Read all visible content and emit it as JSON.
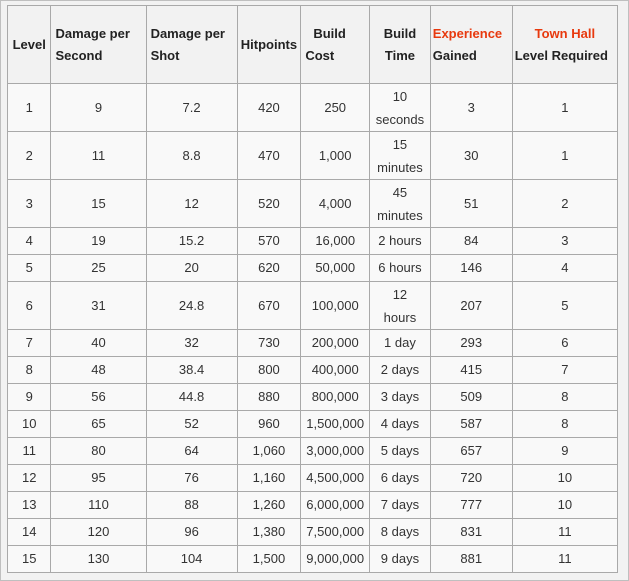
{
  "headers": {
    "level": "Level",
    "dps": [
      "Damage per",
      "Second"
    ],
    "dpshot": [
      "Damage per",
      "Shot"
    ],
    "hitpoints": "Hitpoints",
    "cost": [
      "Build",
      "Cost"
    ],
    "time": [
      "Build",
      "Time"
    ],
    "xp": [
      "Experience",
      "Gained"
    ],
    "townhall": [
      "Town Hall",
      "Level Required"
    ]
  },
  "rows": [
    {
      "level": "1",
      "dps": "9",
      "dpshot": "7.2",
      "hp": "420",
      "cost": "250",
      "time": [
        "10",
        "seconds"
      ],
      "xp": "3",
      "th": "1"
    },
    {
      "level": "2",
      "dps": "11",
      "dpshot": "8.8",
      "hp": "470",
      "cost": "1,000",
      "time": [
        "15",
        "minutes"
      ],
      "xp": "30",
      "th": "1"
    },
    {
      "level": "3",
      "dps": "15",
      "dpshot": "12",
      "hp": "520",
      "cost": "4,000",
      "time": [
        "45",
        "minutes"
      ],
      "xp": "51",
      "th": "2"
    },
    {
      "level": "4",
      "dps": "19",
      "dpshot": "15.2",
      "hp": "570",
      "cost": "16,000",
      "time": [
        "2 hours"
      ],
      "xp": "84",
      "th": "3"
    },
    {
      "level": "5",
      "dps": "25",
      "dpshot": "20",
      "hp": "620",
      "cost": "50,000",
      "time": [
        "6 hours"
      ],
      "xp": "146",
      "th": "4"
    },
    {
      "level": "6",
      "dps": "31",
      "dpshot": "24.8",
      "hp": "670",
      "cost": "100,000",
      "time": [
        "12",
        "hours"
      ],
      "xp": "207",
      "th": "5"
    },
    {
      "level": "7",
      "dps": "40",
      "dpshot": "32",
      "hp": "730",
      "cost": "200,000",
      "time": [
        "1 day"
      ],
      "xp": "293",
      "th": "6"
    },
    {
      "level": "8",
      "dps": "48",
      "dpshot": "38.4",
      "hp": "800",
      "cost": "400,000",
      "time": [
        "2 days"
      ],
      "xp": "415",
      "th": "7"
    },
    {
      "level": "9",
      "dps": "56",
      "dpshot": "44.8",
      "hp": "880",
      "cost": "800,000",
      "time": [
        "3 days"
      ],
      "xp": "509",
      "th": "8"
    },
    {
      "level": "10",
      "dps": "65",
      "dpshot": "52",
      "hp": "960",
      "cost": "1,500,000",
      "time": [
        "4 days"
      ],
      "xp": "587",
      "th": "8"
    },
    {
      "level": "11",
      "dps": "80",
      "dpshot": "64",
      "hp": "1,060",
      "cost": "3,000,000",
      "time": [
        "5 days"
      ],
      "xp": "657",
      "th": "9"
    },
    {
      "level": "12",
      "dps": "95",
      "dpshot": "76",
      "hp": "1,160",
      "cost": "4,500,000",
      "time": [
        "6 days"
      ],
      "xp": "720",
      "th": "10"
    },
    {
      "level": "13",
      "dps": "110",
      "dpshot": "88",
      "hp": "1,260",
      "cost": "6,000,000",
      "time": [
        "7 days"
      ],
      "xp": "777",
      "th": "10"
    },
    {
      "level": "14",
      "dps": "120",
      "dpshot": "96",
      "hp": "1,380",
      "cost": "7,500,000",
      "time": [
        "8 days"
      ],
      "xp": "831",
      "th": "11"
    },
    {
      "level": "15",
      "dps": "130",
      "dpshot": "104",
      "hp": "1,500",
      "cost": "9,000,000",
      "time": [
        "9 days"
      ],
      "xp": "881",
      "th": "11"
    }
  ],
  "colors": {
    "highlight": "#e8390e",
    "border": "#a9a9a9",
    "header_bg": "#f2f2f2",
    "cell_bg": "#f9f9f9"
  }
}
